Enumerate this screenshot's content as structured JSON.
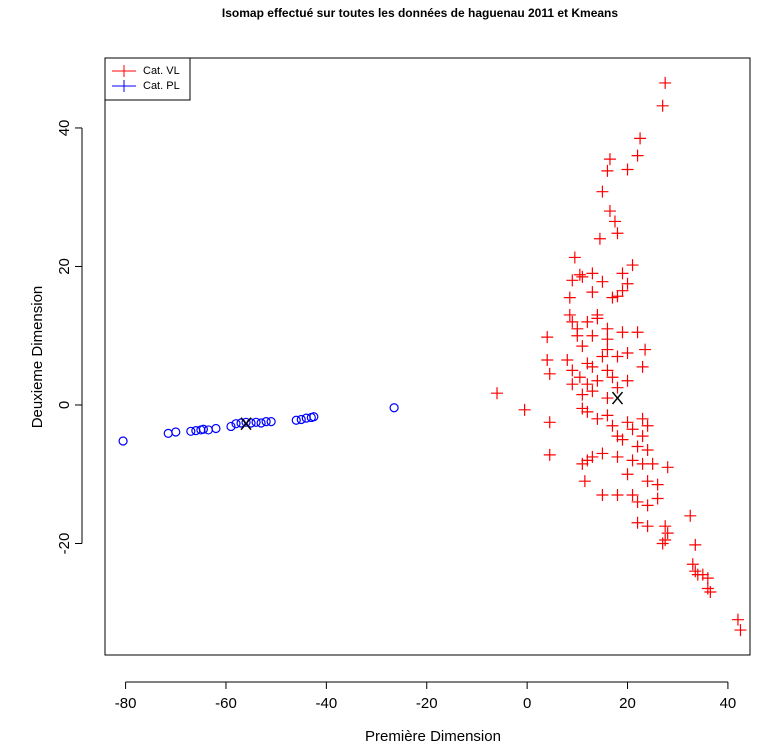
{
  "chart_data": {
    "type": "scatter",
    "title": "Isomap effectué sur toutes les données de haguenau 2011 et Kmeans",
    "x_label": "Première Dimension",
    "y_label": "Deuxieme Dimension",
    "xlim": [
      -84.1,
      44.4
    ],
    "ylim": [
      -36.1,
      50.1
    ],
    "xticks": [
      -80,
      -60,
      -40,
      -20,
      0,
      20,
      40
    ],
    "yticks": [
      -20,
      0,
      20,
      40
    ],
    "legend": "topleft",
    "series": [
      {
        "name": "Cat. VL",
        "color": "#ff0000",
        "marker": "plus",
        "x": [
          27.5,
          27,
          22.5,
          22,
          16.5,
          16,
          20,
          15,
          16.5,
          17.5,
          18,
          14.5,
          9.5,
          10.5,
          11,
          13,
          9,
          19,
          21,
          20,
          15,
          17,
          19,
          8.5,
          13,
          14,
          18,
          8.5,
          9,
          10,
          12,
          14,
          16,
          19,
          10,
          13,
          16,
          22,
          4,
          11,
          16,
          18,
          8,
          12,
          15,
          20,
          23.5,
          4,
          9,
          13,
          16,
          23,
          4.5,
          10.5,
          12,
          14,
          17,
          20,
          9,
          11,
          13,
          16,
          18,
          -6,
          -0.5,
          11,
          12,
          16,
          14,
          20,
          23,
          4.5,
          17,
          21,
          24,
          18,
          23,
          19,
          22,
          24,
          15,
          13,
          18,
          4.5,
          11,
          12,
          21,
          23,
          25,
          28,
          20,
          24,
          26,
          11.5,
          15,
          18,
          21,
          22,
          24,
          26,
          22,
          24,
          27.5,
          28,
          27.5,
          27,
          32.5,
          33.5,
          33,
          33.5,
          34,
          35,
          36,
          36,
          36.5,
          42,
          42.5
        ],
        "y": [
          46.5,
          43.2,
          38.5,
          36,
          35.5,
          33.8,
          34,
          30.8,
          28,
          26.5,
          24.8,
          24,
          21.3,
          18.8,
          18.5,
          19,
          18,
          19,
          20.2,
          17.5,
          17.8,
          15.5,
          16.5,
          15.5,
          16.3,
          13,
          15.7,
          13,
          12,
          11,
          12,
          12.5,
          11,
          10.5,
          10,
          10,
          9.5,
          10.5,
          9.8,
          8.5,
          8,
          7,
          6.5,
          6,
          7,
          7.5,
          8,
          6.5,
          5,
          5.5,
          5,
          5.5,
          4.5,
          4,
          3,
          3.5,
          4,
          3.5,
          3,
          1.5,
          2,
          1,
          2.5,
          1.7,
          -0.7,
          -0.5,
          -1,
          -1.5,
          -2,
          -2.5,
          -2,
          -2.5,
          -3,
          -3.5,
          -3,
          -4.5,
          -4.5,
          -5,
          -6,
          -6.5,
          -7,
          -7.5,
          -7.5,
          -7.2,
          -8.5,
          -8,
          -8,
          -8.5,
          -8.5,
          -9,
          -10,
          -11,
          -11.5,
          -11,
          -13,
          -13,
          -13,
          -14,
          -14.5,
          -13.5,
          -17,
          -17.5,
          -17.5,
          -18.5,
          -19.5,
          -20,
          -16,
          -20.2,
          -23,
          -24,
          -24.5,
          -24.5,
          -25,
          -26.5,
          -27,
          -31,
          -32.5
        ]
      },
      {
        "name": "Cat. PL",
        "color": "#0000ff",
        "marker": "circle",
        "x": [
          -80.5,
          -71.5,
          -70,
          -67,
          -66,
          -65,
          -64.5,
          -63.5,
          -62,
          -59,
          -58,
          -57,
          -56,
          -55,
          -54,
          -53,
          -52,
          -51,
          -46,
          -45,
          -44,
          -43,
          -42.5,
          -26.5
        ],
        "y": [
          -5.2,
          -4.1,
          -3.9,
          -3.8,
          -3.7,
          -3.6,
          -3.5,
          -3.6,
          -3.4,
          -3.1,
          -2.7,
          -2.6,
          -2.5,
          -2.6,
          -2.5,
          -2.6,
          -2.4,
          -2.4,
          -2.2,
          -2.1,
          -1.9,
          -1.8,
          -1.7,
          -0.4
        ]
      }
    ],
    "centers": {
      "color": "#000000",
      "x": [
        -56,
        18
      ],
      "y": [
        -2.7,
        1
      ]
    }
  }
}
